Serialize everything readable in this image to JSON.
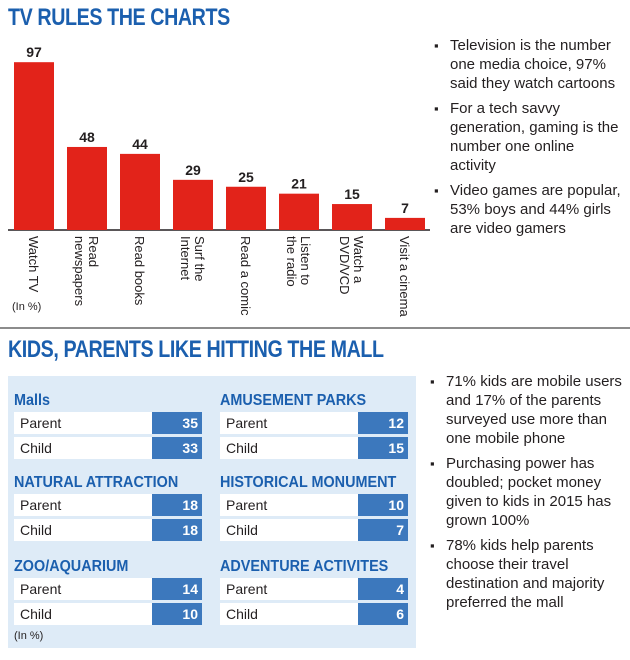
{
  "titles": {
    "top": "TV RULES THE CHARTS",
    "bottom": "KIDS, PARENTS LIKE HITTING THE MALL"
  },
  "colors": {
    "title": "#1b5fae",
    "bar": "#e2231a",
    "panel": "#deebf7",
    "value_box": "#3c78bd"
  },
  "chart_data": {
    "type": "bar",
    "categories": [
      [
        "Watch TV"
      ],
      [
        "Read",
        "newspapers"
      ],
      [
        "Read books"
      ],
      [
        "Surf the",
        "Internet"
      ],
      [
        "Read a comic"
      ],
      [
        "Listen to",
        "the radio"
      ],
      [
        "Watch a",
        "DVD/VCD"
      ],
      [
        "Visit a cinema"
      ]
    ],
    "values": [
      97,
      48,
      44,
      29,
      25,
      21,
      15,
      7
    ],
    "unit_note": "(In %)",
    "ylim": [
      0,
      100
    ],
    "grid": false,
    "legend": "none"
  },
  "top_bullets": [
    "Television is the number one media choice, 97% said they watch cartoons",
    "For a tech savvy generation, gaming is the number one online activity",
    "Video games are popular, 53% boys and 44% girls are video gamers"
  ],
  "mall_table": {
    "groups": [
      {
        "title": "Malls",
        "rows": [
          {
            "label": "Parent",
            "value": "35"
          },
          {
            "label": "Child",
            "value": "33"
          }
        ]
      },
      {
        "title": "AMUSEMENT PARKS",
        "rows": [
          {
            "label": "Parent",
            "value": "12"
          },
          {
            "label": "Child",
            "value": "15"
          }
        ]
      },
      {
        "title": "NATURAL ATTRACTION",
        "rows": [
          {
            "label": "Parent",
            "value": "18"
          },
          {
            "label": "Child",
            "value": "18"
          }
        ]
      },
      {
        "title": "HISTORICAL MONUMENT",
        "rows": [
          {
            "label": "Parent",
            "value": "10"
          },
          {
            "label": "Child",
            "value": "7"
          }
        ]
      },
      {
        "title": "ZOO/AQUARIUM",
        "rows": [
          {
            "label": "Parent",
            "value": "14"
          },
          {
            "label": "Child",
            "value": "10"
          }
        ]
      },
      {
        "title": "ADVENTURE ACTIVITES",
        "rows": [
          {
            "label": "Parent",
            "value": "4"
          },
          {
            "label": "Child",
            "value": "6"
          }
        ]
      }
    ],
    "unit_note": "(In %)"
  },
  "bottom_bullets": [
    "71% kids are mobile users and 17% of the parents surveyed use more than one mobile phone",
    "Purchasing power has doubled; pocket money given to kids in 2015 has grown 100%",
    "78% kids help parents choose their travel destination and majority preferred the mall"
  ]
}
